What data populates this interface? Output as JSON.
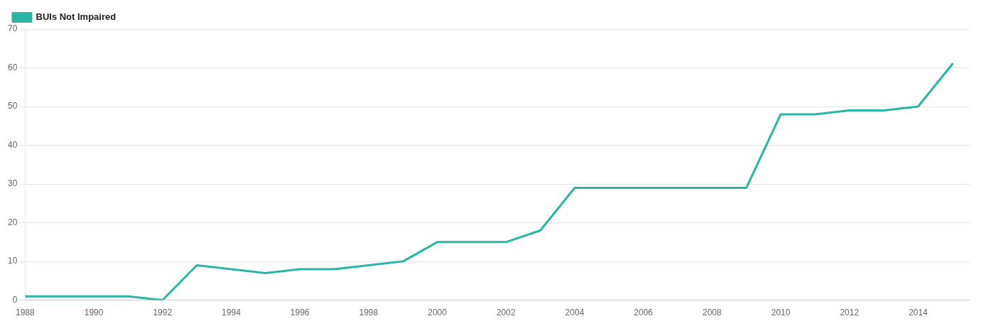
{
  "chart_data": {
    "type": "line",
    "x": [
      1988,
      1989,
      1990,
      1991,
      1992,
      1993,
      1994,
      1995,
      1996,
      1997,
      1998,
      1999,
      2000,
      2001,
      2002,
      2003,
      2004,
      2005,
      2006,
      2007,
      2008,
      2009,
      2010,
      2011,
      2012,
      2013,
      2014,
      2015
    ],
    "series": [
      {
        "name": "BUIs Not Impaired",
        "color": "#2ab5a5",
        "values": [
          1,
          1,
          1,
          1,
          0,
          9,
          8,
          7,
          8,
          8,
          9,
          10,
          15,
          15,
          15,
          18,
          29,
          29,
          29,
          29,
          29,
          29,
          48,
          48,
          49,
          49,
          50,
          61
        ]
      }
    ],
    "xlim": [
      1988,
      2015.5
    ],
    "xticks": [
      1988,
      1990,
      1992,
      1994,
      1996,
      1998,
      2000,
      2002,
      2004,
      2006,
      2008,
      2010,
      2012,
      2014
    ],
    "ylim": [
      0,
      70
    ],
    "yticks": [
      0,
      10,
      20,
      30,
      40,
      50,
      60,
      70
    ],
    "grid": "y",
    "legend": "upper left"
  }
}
